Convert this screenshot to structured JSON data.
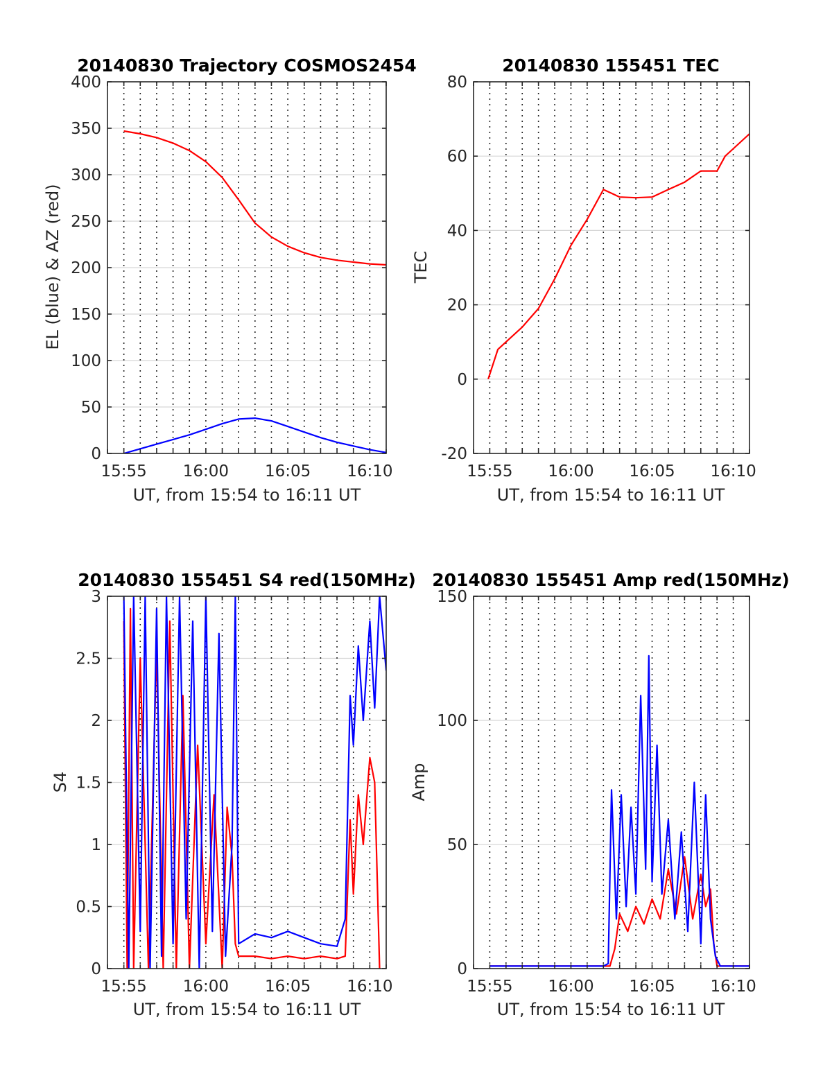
{
  "colors": {
    "red": "#ff0000",
    "blue": "#0000ff"
  },
  "chart_data": [
    {
      "type": "line",
      "title": "20140830 Trajectory COSMOS2454",
      "xlabel": "UT, from 15:54 to 16:11 UT",
      "ylabel": "EL (blue) & AZ (red)",
      "xticks": [
        "15:55",
        "16:00",
        "16:05",
        "16:10"
      ],
      "xtick_minutes": [
        1,
        6,
        11,
        16
      ],
      "xlim_minutes": [
        0,
        17
      ],
      "yticks": [
        "0",
        "50",
        "100",
        "150",
        "200",
        "250",
        "300",
        "350",
        "400"
      ],
      "ylim": [
        0,
        400
      ],
      "grid": "on",
      "series": [
        {
          "color": "red",
          "x": [
            1,
            2,
            3,
            4,
            5,
            6,
            7,
            8,
            9,
            10,
            11,
            12,
            13,
            14,
            15,
            16,
            17
          ],
          "y": [
            347,
            344,
            340,
            334,
            326,
            314,
            297,
            273,
            248,
            233,
            223,
            216,
            211,
            208,
            206,
            204,
            203
          ]
        },
        {
          "color": "blue",
          "x": [
            1,
            2,
            3,
            4,
            5,
            6,
            7,
            8,
            9,
            10,
            11,
            12,
            13,
            14,
            15,
            16,
            17
          ],
          "y": [
            0,
            5,
            10,
            15,
            20,
            26,
            32,
            37,
            38,
            35,
            29,
            23,
            17,
            12,
            8,
            4,
            1
          ]
        }
      ]
    },
    {
      "type": "line",
      "title": "20140830 155451 TEC",
      "xlabel": "UT, from 15:54 to 16:11 UT",
      "ylabel": "TEC",
      "xticks": [
        "15:55",
        "16:00",
        "16:05",
        "16:10"
      ],
      "xtick_minutes": [
        1,
        6,
        11,
        16
      ],
      "xlim_minutes": [
        0,
        17
      ],
      "yticks": [
        "-20",
        "0",
        "20",
        "40",
        "60",
        "80"
      ],
      "ylim": [
        -20,
        80
      ],
      "grid": "on",
      "series": [
        {
          "color": "red",
          "x": [
            0.9,
            1.5,
            2,
            3,
            4,
            5,
            6,
            7,
            7.5,
            8,
            8.5,
            9,
            10,
            11,
            12,
            13,
            14,
            15,
            15.5,
            16,
            17
          ],
          "y": [
            0,
            8,
            10,
            14,
            19,
            27,
            36,
            43,
            47,
            51,
            50,
            49,
            48.8,
            49,
            51,
            53,
            56,
            56,
            60,
            62,
            66
          ]
        }
      ]
    },
    {
      "type": "line",
      "title": "20140830 155451 S4 red(150MHz)",
      "xlabel": "UT, from 15:54 to 16:11 UT",
      "ylabel": "S4",
      "xticks": [
        "15:55",
        "16:00",
        "16:05",
        "16:10"
      ],
      "xtick_minutes": [
        1,
        6,
        11,
        16
      ],
      "xlim_minutes": [
        0,
        17
      ],
      "yticks": [
        "0",
        "0.5",
        "1",
        "1.5",
        "2",
        "2.5",
        "3"
      ],
      "ylim": [
        0,
        3
      ],
      "grid": "on",
      "series": [
        {
          "color": "red",
          "x": [
            1,
            1.2,
            1.4,
            1.6,
            2,
            2.5,
            3,
            3.4,
            3.8,
            4.2,
            4.6,
            5,
            5.5,
            6,
            6.5,
            7,
            7.3,
            7.6,
            7.8,
            8,
            9,
            10,
            11,
            12,
            13,
            14,
            14.5,
            14.8,
            15,
            15.3,
            15.6,
            16,
            16.3,
            16.6
          ],
          "y": [
            2.8,
            0,
            2.9,
            0,
            2.5,
            0,
            2.6,
            0,
            2.8,
            0,
            2.2,
            0,
            1.8,
            0.2,
            1.4,
            0,
            1.3,
            0.9,
            0.2,
            0.1,
            0.1,
            0.08,
            0.1,
            0.08,
            0.1,
            0.08,
            0.1,
            1.2,
            0.6,
            1.4,
            1.0,
            1.7,
            1.5,
            0
          ]
        },
        {
          "color": "blue",
          "x": [
            1,
            1.3,
            1.6,
            2,
            2.3,
            2.6,
            3,
            3.3,
            3.6,
            4,
            4.4,
            4.8,
            5.2,
            5.6,
            6,
            6.4,
            6.8,
            7.2,
            7.6,
            7.8,
            8,
            9,
            10,
            11,
            12,
            13,
            14,
            14.5,
            14.8,
            15,
            15.3,
            15.6,
            16,
            16.3,
            16.6,
            17
          ],
          "y": [
            3,
            0,
            3,
            0.3,
            3,
            0,
            2.9,
            0.1,
            3,
            0.2,
            3,
            0.4,
            2.8,
            0,
            3,
            0.3,
            2.7,
            0.1,
            1.0,
            3,
            0.2,
            0.28,
            0.25,
            0.3,
            0.25,
            0.2,
            0.18,
            0.4,
            2.2,
            1.8,
            2.6,
            2.0,
            2.8,
            2.1,
            3,
            2.4
          ]
        }
      ]
    },
    {
      "type": "line",
      "title": "20140830 155451 Amp red(150MHz)",
      "xlabel": "UT, from 15:54 to 16:11 UT",
      "ylabel": "Amp",
      "xticks": [
        "15:55",
        "16:00",
        "16:05",
        "16:10"
      ],
      "xtick_minutes": [
        1,
        6,
        11,
        16
      ],
      "xlim_minutes": [
        0,
        17
      ],
      "yticks": [
        "0",
        "50",
        "100",
        "150"
      ],
      "ylim": [
        0,
        150
      ],
      "grid": "on",
      "series": [
        {
          "color": "red",
          "x": [
            1,
            3,
            5,
            7,
            8.4,
            8.7,
            9,
            9.5,
            10,
            10.5,
            11,
            11.5,
            12,
            12.5,
            13,
            13.5,
            14,
            14.3,
            14.6,
            14.8,
            15,
            17
          ],
          "y": [
            1,
            1,
            1,
            1,
            1,
            8,
            22,
            15,
            25,
            18,
            28,
            20,
            40,
            22,
            45,
            20,
            38,
            25,
            32,
            10,
            1,
            1
          ]
        },
        {
          "color": "blue",
          "x": [
            1,
            2,
            3,
            4,
            5,
            6,
            7,
            8,
            8.3,
            8.5,
            8.8,
            9.1,
            9.4,
            9.7,
            10,
            10.3,
            10.6,
            10.8,
            11,
            11.3,
            11.6,
            12,
            12.4,
            12.8,
            13.2,
            13.6,
            14,
            14.3,
            14.6,
            14.9,
            15.2,
            16,
            17
          ],
          "y": [
            1,
            1,
            1,
            1,
            1,
            1,
            1,
            1,
            2,
            72,
            20,
            70,
            25,
            65,
            30,
            110,
            40,
            126,
            35,
            90,
            30,
            60,
            20,
            55,
            15,
            75,
            10,
            70,
            20,
            5,
            1,
            1,
            1
          ]
        }
      ]
    }
  ]
}
